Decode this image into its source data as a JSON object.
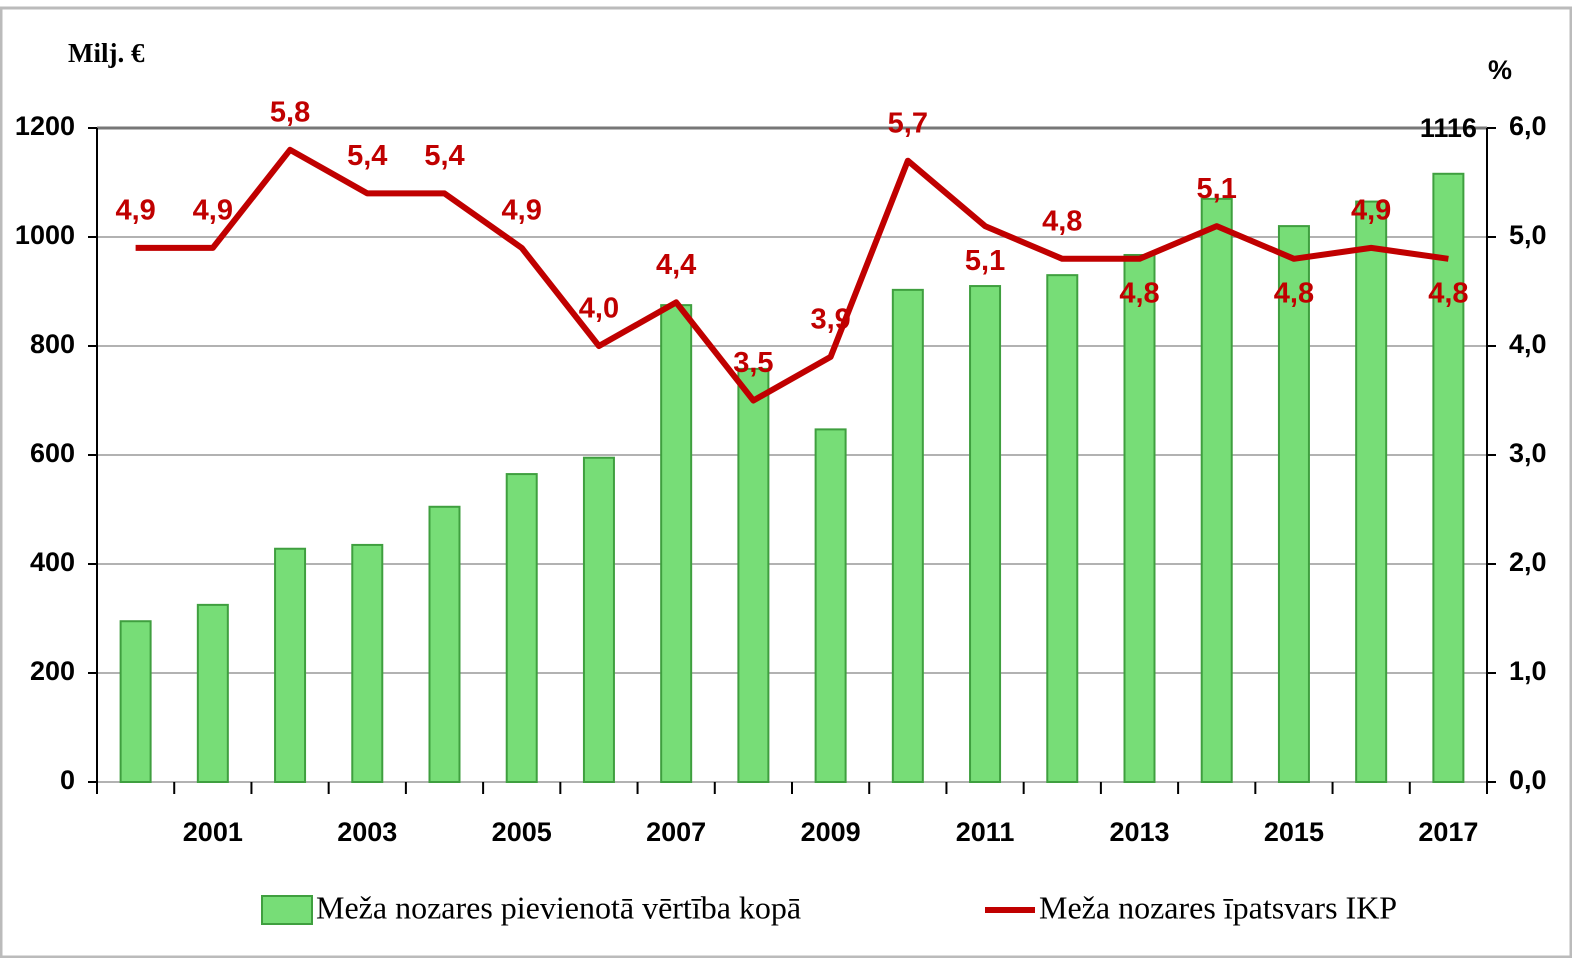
{
  "chart_data": {
    "type": "bar_line",
    "y_label": "Milj. €",
    "y2_label": "%",
    "categories": [
      null,
      "2001",
      null,
      "2003",
      null,
      "2005",
      null,
      "2007",
      null,
      "2009",
      null,
      "2011",
      null,
      "2013",
      null,
      "2015",
      null,
      "2017"
    ],
    "series": [
      {
        "name": "Meža nozares pievienotā vērtība kopā",
        "type": "bar",
        "color": "#77dd77",
        "values": [
          295,
          325,
          428,
          435,
          505,
          565,
          595,
          875,
          758,
          647,
          903,
          910,
          930,
          967,
          1070,
          1020,
          1065,
          1116
        ],
        "value_labels": [
          null,
          null,
          null,
          null,
          null,
          null,
          null,
          null,
          null,
          null,
          null,
          null,
          null,
          null,
          null,
          null,
          null,
          "1116"
        ]
      },
      {
        "name": "Meža nozares īpatsvars IKP",
        "type": "line",
        "color": "#c00000",
        "axis": "y2",
        "values": [
          4.9,
          4.9,
          5.8,
          5.4,
          5.4,
          4.9,
          4.0,
          4.4,
          3.5,
          3.9,
          5.7,
          5.1,
          4.8,
          4.8,
          5.1,
          4.8,
          4.9,
          4.8
        ],
        "value_labels": [
          "4,9",
          "4,9",
          "5,8",
          "5,4",
          "5,4",
          "4,9",
          "4,0",
          "4,4",
          "3,5",
          "3,9",
          "5,7",
          "5,1",
          "4,8",
          "4,8",
          "5,1",
          "4,8",
          "4,9",
          "4,8"
        ]
      }
    ],
    "ylim": [
      0,
      1200
    ],
    "yticks": [
      0,
      200,
      400,
      600,
      800,
      1000,
      1200
    ],
    "y2lim": [
      0,
      6
    ],
    "y2ticks": [
      {
        "value": 0,
        "label": "0,0"
      },
      {
        "value": 1,
        "label": "1,0"
      },
      {
        "value": 2,
        "label": "2,0"
      },
      {
        "value": 3,
        "label": "3,0"
      },
      {
        "value": 4,
        "label": "4,0"
      },
      {
        "value": 5,
        "label": "5,0"
      },
      {
        "value": 6,
        "label": "6,0"
      }
    ],
    "grid": true
  }
}
